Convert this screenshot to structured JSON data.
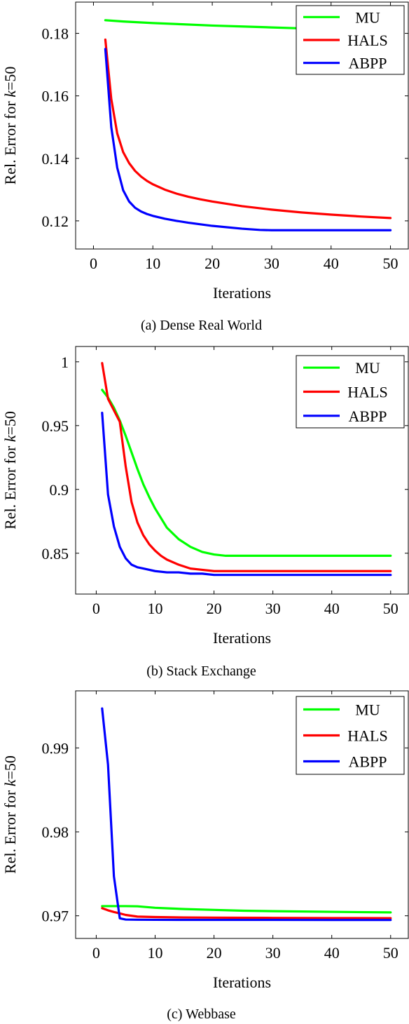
{
  "chart_data": [
    {
      "type": "line",
      "caption": "(a) Dense Real World",
      "xlabel": "Iterations",
      "ylabel_prefix": "Rel. Error for ",
      "ylabel_var": "k",
      "ylabel_suffix": "=50",
      "xlim": [
        -3,
        53
      ],
      "ylim": [
        0.111,
        0.19
      ],
      "xticks": [
        0,
        10,
        20,
        30,
        40,
        50
      ],
      "yticks": [
        0.12,
        0.14,
        0.16,
        0.18
      ],
      "ytick_labels": [
        "0.12",
        "0.14",
        "0.16",
        "0.18"
      ],
      "legend_position": "top-right",
      "grid": false,
      "series": [
        {
          "name": "MU",
          "color": "#00ff00",
          "x": [
            2,
            5,
            10,
            15,
            20,
            25,
            30,
            35,
            40,
            45,
            50
          ],
          "y": [
            0.1842,
            0.1838,
            0.1833,
            0.1829,
            0.1825,
            0.1822,
            0.1819,
            0.1816,
            0.1813,
            0.181,
            0.1808
          ]
        },
        {
          "name": "HALS",
          "color": "#ff0000",
          "x": [
            2,
            3,
            4,
            5,
            6,
            7,
            8,
            9,
            10,
            12,
            14,
            16,
            18,
            20,
            25,
            30,
            35,
            40,
            45,
            50
          ],
          "y": [
            0.178,
            0.159,
            0.148,
            0.142,
            0.1385,
            0.136,
            0.1342,
            0.1328,
            0.1317,
            0.13,
            0.1287,
            0.1277,
            0.1269,
            0.1262,
            0.1247,
            0.1236,
            0.1227,
            0.122,
            0.1214,
            0.1209
          ]
        },
        {
          "name": "ABPP",
          "color": "#0000ff",
          "x": [
            2,
            3,
            4,
            5,
            6,
            7,
            8,
            9,
            10,
            12,
            14,
            16,
            18,
            20,
            25,
            28,
            30,
            40,
            50
          ],
          "y": [
            0.175,
            0.15,
            0.137,
            0.1298,
            0.1262,
            0.1242,
            0.123,
            0.1222,
            0.1216,
            0.1207,
            0.12,
            0.1194,
            0.1189,
            0.1184,
            0.1175,
            0.1171,
            0.117,
            0.117,
            0.117
          ]
        }
      ]
    },
    {
      "type": "line",
      "caption": "(b) Stack Exchange",
      "xlabel": "Iterations",
      "ylabel_prefix": "Rel. Error for ",
      "ylabel_var": "k",
      "ylabel_suffix": "=50",
      "xlim": [
        -3.5,
        53
      ],
      "ylim": [
        0.818,
        1.012
      ],
      "xticks": [
        0,
        10,
        20,
        30,
        40,
        50
      ],
      "yticks": [
        0.85,
        0.9,
        0.95,
        1.0
      ],
      "ytick_labels": [
        "0.85",
        "0.9",
        "0.95",
        "1"
      ],
      "legend_position": "top-right",
      "grid": false,
      "series": [
        {
          "name": "MU",
          "color": "#00ff00",
          "x": [
            1,
            2,
            3,
            4,
            5,
            6,
            7,
            8,
            9,
            10,
            12,
            14,
            16,
            18,
            20,
            22,
            23,
            25,
            30,
            40,
            50
          ],
          "y": [
            0.978,
            0.972,
            0.964,
            0.954,
            0.942,
            0.929,
            0.916,
            0.904,
            0.894,
            0.885,
            0.87,
            0.861,
            0.855,
            0.851,
            0.849,
            0.848,
            0.848,
            0.848,
            0.848,
            0.848,
            0.848
          ]
        },
        {
          "name": "HALS",
          "color": "#ff0000",
          "x": [
            1,
            2,
            3,
            4,
            5,
            6,
            7,
            8,
            9,
            10,
            11,
            12,
            14,
            16,
            18,
            20,
            25,
            30,
            40,
            50
          ],
          "y": [
            0.999,
            0.971,
            0.962,
            0.953,
            0.918,
            0.89,
            0.874,
            0.864,
            0.857,
            0.852,
            0.848,
            0.845,
            0.841,
            0.838,
            0.837,
            0.836,
            0.836,
            0.836,
            0.836,
            0.836
          ]
        },
        {
          "name": "ABPP",
          "color": "#0000ff",
          "x": [
            1,
            2,
            3,
            4,
            5,
            6,
            7,
            8,
            10,
            12,
            14,
            16,
            18,
            20,
            25,
            30,
            40,
            50
          ],
          "y": [
            0.96,
            0.896,
            0.871,
            0.855,
            0.846,
            0.841,
            0.839,
            0.838,
            0.836,
            0.835,
            0.835,
            0.834,
            0.834,
            0.833,
            0.833,
            0.833,
            0.833,
            0.833
          ]
        }
      ]
    },
    {
      "type": "line",
      "caption": "(c) Webbase",
      "xlabel": "Iterations",
      "ylabel_prefix": "Rel. Error for ",
      "ylabel_var": "k",
      "ylabel_suffix": "=50",
      "xlim": [
        -3.5,
        53
      ],
      "ylim": [
        0.9673,
        0.9968
      ],
      "xticks": [
        0,
        10,
        20,
        30,
        40,
        50
      ],
      "yticks": [
        0.97,
        0.98,
        0.99
      ],
      "ytick_labels": [
        "0.97",
        "0.98",
        "0.99"
      ],
      "legend_position": "top-right",
      "grid": false,
      "series": [
        {
          "name": "MU",
          "color": "#00ff00",
          "x": [
            1,
            3,
            5,
            7,
            10,
            15,
            20,
            25,
            30,
            40,
            50
          ],
          "y": [
            0.97115,
            0.97115,
            0.97115,
            0.97113,
            0.97095,
            0.9708,
            0.9707,
            0.9706,
            0.97055,
            0.97047,
            0.9704
          ]
        },
        {
          "name": "HALS",
          "color": "#ff0000",
          "x": [
            1,
            2,
            3,
            4,
            5,
            7,
            10,
            15,
            20,
            30,
            40,
            50
          ],
          "y": [
            0.9709,
            0.97065,
            0.97045,
            0.97028,
            0.9701,
            0.9699,
            0.96985,
            0.9698,
            0.96978,
            0.96975,
            0.96973,
            0.96972
          ]
        },
        {
          "name": "ABPP",
          "color": "#0000ff",
          "x": [
            1,
            2,
            3,
            4,
            5,
            7,
            10,
            20,
            30,
            40,
            50
          ],
          "y": [
            0.9947,
            0.988,
            0.9747,
            0.9697,
            0.96955,
            0.96953,
            0.96952,
            0.96951,
            0.96951,
            0.9695,
            0.9695
          ]
        }
      ]
    }
  ]
}
